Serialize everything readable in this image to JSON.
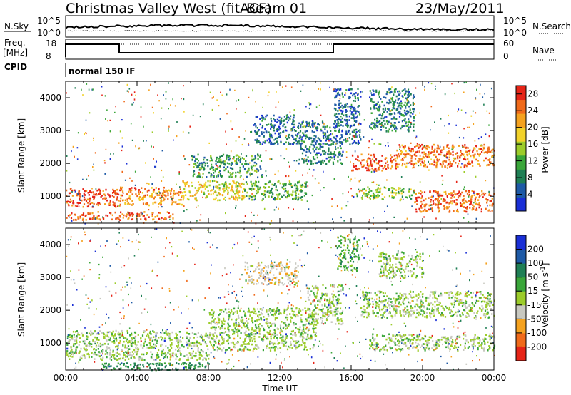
{
  "header": {
    "station": "Christmas Valley West (fitACF)",
    "beam": "Beam 01",
    "date": "23/May/2011"
  },
  "panel_labels": {
    "nsky": "N.Sky",
    "nsearch": "N.Search",
    "freq": "Freq.",
    "freq_unit": "[MHz]",
    "nave": "Nave",
    "cpid": "CPID",
    "cpid_value": "normal 150 IF",
    "nsky_ticks": [
      "10^5",
      "10^0"
    ],
    "nsearch_ticks": [
      "10^5",
      "10^0"
    ],
    "freq_ticks": [
      "18",
      "8"
    ],
    "nave_ticks": [
      "60",
      "0"
    ]
  },
  "chart_data": [
    {
      "type": "heatmap",
      "name": "power",
      "xlabel": "Time UT",
      "ylabel": "Slant Range [km]",
      "x_ticks": [
        "00:00",
        "04:00",
        "08:00",
        "12:00",
        "16:00",
        "20:00",
        "00:00"
      ],
      "xlim": [
        0,
        24
      ],
      "y_ticks": [
        1000,
        2000,
        3000,
        4000
      ],
      "ylim": [
        180,
        4500
      ],
      "colorbar_label": "Power [dB]",
      "colorbar_ticks": [
        4,
        8,
        12,
        16,
        20,
        24,
        28
      ],
      "colorbar_range": [
        0,
        30
      ],
      "colors": [
        "#1a2fd6",
        "#1e5aa6",
        "#1f7f55",
        "#3aa63a",
        "#9ccc2a",
        "#f2d22a",
        "#f5a21f",
        "#f06a1a",
        "#e62417"
      ],
      "regions": [
        {
          "t0": 0.0,
          "t1": 3.0,
          "r0": 700,
          "r1": 1250,
          "db": 27
        },
        {
          "t0": 3.0,
          "t1": 6.5,
          "r0": 750,
          "r1": 1300,
          "db": 23
        },
        {
          "t0": 6.5,
          "t1": 10.0,
          "r0": 900,
          "r1": 1500,
          "db": 18
        },
        {
          "t0": 10.0,
          "t1": 13.5,
          "r0": 900,
          "r1": 1500,
          "db": 12
        },
        {
          "t0": 0.0,
          "t1": 6.0,
          "r0": 300,
          "r1": 550,
          "db": 25
        },
        {
          "t0": 7.0,
          "t1": 11.0,
          "r0": 1600,
          "r1": 2300,
          "db": 10
        },
        {
          "t0": 10.5,
          "t1": 13.0,
          "r0": 2600,
          "r1": 3500,
          "db": 6
        },
        {
          "t0": 13.0,
          "t1": 15.5,
          "r0": 2000,
          "r1": 3300,
          "db": 7
        },
        {
          "t0": 16.0,
          "t1": 18.5,
          "r0": 1800,
          "r1": 2300,
          "db": 26
        },
        {
          "t0": 18.5,
          "t1": 24.0,
          "r0": 1900,
          "r1": 2600,
          "db": 24
        },
        {
          "t0": 16.5,
          "t1": 19.5,
          "r0": 900,
          "r1": 1300,
          "db": 14
        },
        {
          "t0": 19.5,
          "t1": 24.0,
          "r0": 550,
          "r1": 1200,
          "db": 25
        },
        {
          "t0": 15.0,
          "t1": 16.5,
          "r0": 2600,
          "r1": 4300,
          "db": 6
        },
        {
          "t0": 17.0,
          "t1": 19.5,
          "r0": 3000,
          "r1": 4300,
          "db": 8
        }
      ]
    },
    {
      "type": "heatmap",
      "name": "velocity",
      "xlabel": "Time UT",
      "ylabel": "Slant Range [km]",
      "x_ticks": [
        "00:00",
        "04:00",
        "08:00",
        "12:00",
        "16:00",
        "20:00",
        "00:00"
      ],
      "xlim": [
        0,
        24
      ],
      "y_ticks": [
        1000,
        2000,
        3000,
        4000
      ],
      "ylim": [
        180,
        4500
      ],
      "colorbar_label": "Velocity [m s^-1]",
      "colorbar_ticks": [
        "200",
        "100",
        "50",
        "15",
        "-15",
        "-50",
        "-100",
        "-200"
      ],
      "colors": [
        "#1a2fd6",
        "#1e5aa6",
        "#1f7f55",
        "#3aa63a",
        "#9ccc2a",
        "#c8c8c0",
        "#f5a21f",
        "#f06a1a",
        "#e62417"
      ],
      "regions": [
        {
          "t0": 0.0,
          "t1": 8.0,
          "r0": 500,
          "r1": 1400,
          "v": 0
        },
        {
          "t0": 8.0,
          "t1": 14.0,
          "r0": 800,
          "r1": 2100,
          "v": 0
        },
        {
          "t0": 2.0,
          "t1": 8.0,
          "r0": 180,
          "r1": 420,
          "v": 60
        },
        {
          "t0": 10.0,
          "t1": 13.0,
          "r0": 2800,
          "r1": 3500,
          "v": -40
        },
        {
          "t0": 13.5,
          "t1": 15.5,
          "r0": 1600,
          "r1": 2800,
          "v": 0
        },
        {
          "t0": 16.5,
          "t1": 24.0,
          "r0": 1800,
          "r1": 2600,
          "v": 0
        },
        {
          "t0": 17.0,
          "t1": 24.0,
          "r0": 800,
          "r1": 1300,
          "v": 0
        },
        {
          "t0": 17.5,
          "t1": 20.0,
          "r0": 3000,
          "r1": 3800,
          "v": 0
        },
        {
          "t0": 15.2,
          "t1": 16.4,
          "r0": 3200,
          "r1": 4300,
          "v": 30
        }
      ]
    }
  ]
}
